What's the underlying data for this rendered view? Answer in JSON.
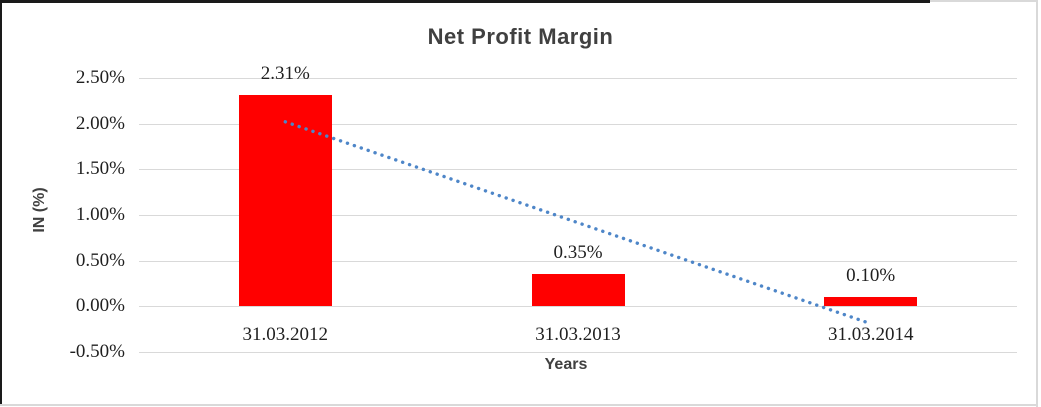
{
  "chart_data": {
    "type": "bar",
    "title": "Net Profit Margin",
    "xlabel": "Years",
    "ylabel": "IN (%)",
    "categories": [
      "31.03.2012",
      "31.03.2013",
      "31.03.2014"
    ],
    "values": [
      2.31,
      0.35,
      0.1
    ],
    "data_labels": [
      "2.31%",
      "0.35%",
      "0.10%"
    ],
    "ylim": [
      -0.5,
      2.5
    ],
    "ytick_step": 0.5,
    "yticks": [
      {
        "value": 2.5,
        "label": "2.50%"
      },
      {
        "value": 2.0,
        "label": "2.00%"
      },
      {
        "value": 1.5,
        "label": "1.50%"
      },
      {
        "value": 1.0,
        "label": "1.00%"
      },
      {
        "value": 0.5,
        "label": "0.50%"
      },
      {
        "value": 0.0,
        "label": "0.00%"
      },
      {
        "value": -0.5,
        "label": "-0.50%"
      }
    ],
    "grid": true,
    "legend": "none",
    "bar_color": "#ff0000",
    "trendline": {
      "type": "linear",
      "style": "dotted",
      "color": "#4e86c8",
      "start_value": 2.02,
      "end_value": -0.19
    },
    "colors": {
      "title": "#404040",
      "axis_title": "#404040",
      "tick_text": "#1f1f1f",
      "gridline": "#d9d9d9"
    }
  }
}
